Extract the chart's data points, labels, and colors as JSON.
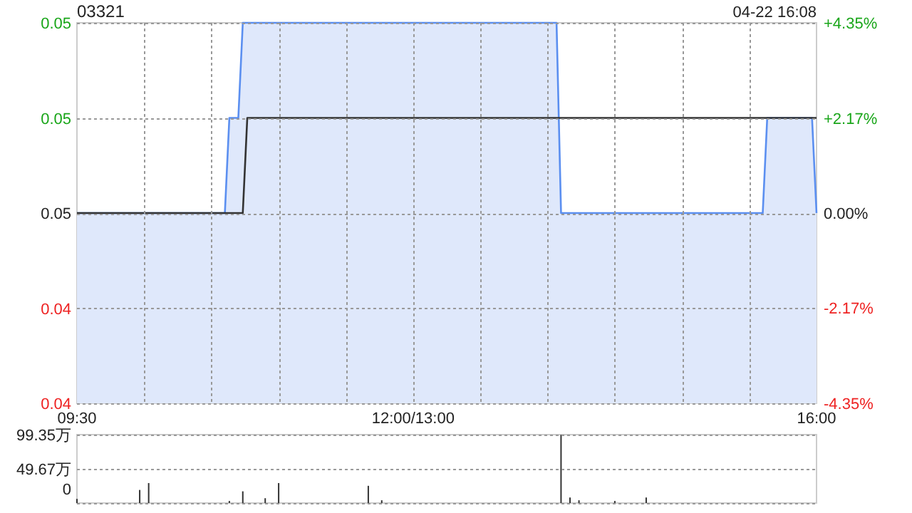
{
  "chart_data": [
    {
      "type": "area",
      "title": "03321",
      "subtitle": "04-22 16:08",
      "grid": true,
      "categories": [
        "09:30",
        null,
        null,
        null,
        null,
        null,
        null,
        null,
        null,
        null,
        null,
        null,
        null,
        null,
        null,
        null,
        null,
        null,
        null,
        null,
        null,
        null,
        null,
        null,
        null,
        null,
        null,
        null,
        null,
        null,
        null,
        null,
        null,
        null,
        null,
        null,
        null,
        null,
        null,
        null,
        null,
        null,
        null,
        null,
        null,
        null,
        null,
        null,
        null,
        null,
        null,
        null,
        null,
        null,
        null,
        null,
        null,
        null,
        null,
        null,
        null,
        null,
        null,
        null,
        null,
        null,
        null,
        null,
        null,
        null,
        null,
        null,
        null,
        null,
        null,
        "12:00/13:00",
        null,
        null,
        null,
        null,
        null,
        null,
        null,
        null,
        null,
        null,
        null,
        null,
        null,
        null,
        null,
        null,
        null,
        null,
        null,
        null,
        null,
        null,
        null,
        null,
        null,
        null,
        null,
        null,
        null,
        null,
        null,
        null,
        null,
        null,
        null,
        null,
        null,
        null,
        null,
        null,
        null,
        null,
        null,
        null,
        null,
        null,
        null,
        null,
        null,
        null,
        null,
        null,
        null,
        null,
        null,
        null,
        null,
        null,
        null,
        null,
        null,
        null,
        null,
        null,
        null,
        null,
        null,
        null,
        null,
        null,
        null,
        null,
        null,
        null,
        null,
        null,
        null,
        null,
        null,
        null,
        null,
        null,
        null,
        null,
        null,
        null,
        null,
        null,
        null,
        "16:00"
      ],
      "ylim": [
        0.044,
        0.048
      ],
      "yticks": [
        {
          "value": 0.048,
          "label": "0.05"
        },
        {
          "value": 0.047,
          "label": "0.05"
        },
        {
          "value": 0.046,
          "label": "0.05"
        },
        {
          "value": 0.045,
          "label": "0.04"
        },
        {
          "value": 0.044,
          "label": "0.04"
        }
      ],
      "y2lim": [
        -4.35,
        4.35
      ],
      "y2ticks": [
        {
          "value": 4.35,
          "label": "+4.35%"
        },
        {
          "value": 2.17,
          "label": "+2.17%"
        },
        {
          "value": 0,
          "label": "0.00%"
        },
        {
          "value": -2.17,
          "label": "-2.17%"
        },
        {
          "value": -4.35,
          "label": "-4.35%"
        }
      ],
      "series": [
        {
          "type": "area",
          "color": "#5b8ff0",
          "values": [
            0.046,
            0.046,
            0.046,
            0.046,
            0.046,
            0.046,
            0.046,
            0.046,
            0.046,
            0.046,
            0.046,
            0.046,
            0.046,
            0.046,
            0.046,
            0.046,
            0.046,
            0.046,
            0.046,
            0.046,
            0.046,
            0.046,
            0.046,
            0.046,
            0.046,
            0.046,
            0.046,
            0.046,
            0.046,
            0.046,
            0.046,
            0.046,
            0.046,
            0.046,
            0.047,
            0.047,
            0.047,
            0.048,
            0.048,
            0.048,
            0.048,
            0.048,
            0.048,
            0.048,
            0.048,
            0.048,
            0.048,
            0.048,
            0.048,
            0.048,
            0.048,
            0.048,
            0.048,
            0.048,
            0.048,
            0.048,
            0.048,
            0.048,
            0.048,
            0.048,
            0.048,
            0.048,
            0.048,
            0.048,
            0.048,
            0.048,
            0.048,
            0.048,
            0.048,
            0.048,
            0.048,
            0.048,
            0.048,
            0.048,
            0.048,
            0.048,
            0.048,
            0.048,
            0.048,
            0.048,
            0.048,
            0.048,
            0.048,
            0.048,
            0.048,
            0.048,
            0.048,
            0.048,
            0.048,
            0.048,
            0.048,
            0.048,
            0.048,
            0.048,
            0.048,
            0.048,
            0.048,
            0.048,
            0.048,
            0.048,
            0.048,
            0.048,
            0.048,
            0.048,
            0.048,
            0.048,
            0.048,
            0.048,
            0.046,
            0.046,
            0.046,
            0.046,
            0.046,
            0.046,
            0.046,
            0.046,
            0.046,
            0.046,
            0.046,
            0.046,
            0.046,
            0.046,
            0.046,
            0.046,
            0.046,
            0.046,
            0.046,
            0.046,
            0.046,
            0.046,
            0.046,
            0.046,
            0.046,
            0.046,
            0.046,
            0.046,
            0.046,
            0.046,
            0.046,
            0.046,
            0.046,
            0.046,
            0.046,
            0.046,
            0.046,
            0.046,
            0.046,
            0.046,
            0.046,
            0.046,
            0.046,
            0.046,
            0.046,
            0.046,
            0.047,
            0.047,
            0.047,
            0.047,
            0.047,
            0.047,
            0.047,
            0.047,
            0.047,
            0.047,
            0.047,
            0.046
          ]
        },
        {
          "type": "line",
          "color": "#333333",
          "values": [
            0.046,
            0.046,
            0.046,
            0.046,
            0.046,
            0.046,
            0.046,
            0.046,
            0.046,
            0.046,
            0.046,
            0.046,
            0.046,
            0.046,
            0.046,
            0.046,
            0.046,
            0.046,
            0.046,
            0.046,
            0.046,
            0.046,
            0.046,
            0.046,
            0.046,
            0.046,
            0.046,
            0.046,
            0.046,
            0.046,
            0.046,
            0.046,
            0.046,
            0.046,
            0.046,
            0.046,
            0.046,
            0.046,
            0.047,
            0.047,
            0.047,
            0.047,
            0.047,
            0.047,
            0.047,
            0.047,
            0.047,
            0.047,
            0.047,
            0.047,
            0.047,
            0.047,
            0.047,
            0.047,
            0.047,
            0.047,
            0.047,
            0.047,
            0.047,
            0.047,
            0.047,
            0.047,
            0.047,
            0.047,
            0.047,
            0.047,
            0.047,
            0.047,
            0.047,
            0.047,
            0.047,
            0.047,
            0.047,
            0.047,
            0.047,
            0.047,
            0.047,
            0.047,
            0.047,
            0.047,
            0.047,
            0.047,
            0.047,
            0.047,
            0.047,
            0.047,
            0.047,
            0.047,
            0.047,
            0.047,
            0.047,
            0.047,
            0.047,
            0.047,
            0.047,
            0.047,
            0.047,
            0.047,
            0.047,
            0.047,
            0.047,
            0.047,
            0.047,
            0.047,
            0.047,
            0.047,
            0.047,
            0.047,
            0.047,
            0.047,
            0.047,
            0.047,
            0.047,
            0.047,
            0.047,
            0.047,
            0.047,
            0.047,
            0.047,
            0.047,
            0.047,
            0.047,
            0.047,
            0.047,
            0.047,
            0.047,
            0.047,
            0.047,
            0.047,
            0.047,
            0.047,
            0.047,
            0.047,
            0.047,
            0.047,
            0.047,
            0.047,
            0.047,
            0.047,
            0.047,
            0.047,
            0.047,
            0.047,
            0.047,
            0.047,
            0.047,
            0.047,
            0.047,
            0.047,
            0.047,
            0.047,
            0.047,
            0.047,
            0.047,
            0.047,
            0.047,
            0.047,
            0.047,
            0.047,
            0.047,
            0.047,
            0.047,
            0.047,
            0.047,
            0.047,
            0.047
          ]
        }
      ]
    },
    {
      "type": "bar",
      "grid": "y",
      "tick_labels": "y",
      "ylim": [
        0,
        99.35
      ],
      "categories": [
        null,
        null,
        null,
        null,
        null,
        null,
        null,
        null,
        null,
        null,
        null,
        null,
        null,
        null,
        null,
        null,
        null,
        null,
        null,
        null,
        null,
        null,
        null,
        null,
        null,
        null,
        null,
        null,
        null,
        null,
        null,
        null,
        null,
        null,
        null,
        null,
        null,
        null,
        null,
        null,
        null,
        null,
        null,
        null,
        null,
        null,
        null,
        null,
        null,
        null,
        null,
        null,
        null,
        null,
        null,
        null,
        null,
        null,
        null,
        null,
        null,
        null,
        null,
        null,
        null,
        null,
        null,
        null,
        null,
        null,
        null,
        null,
        null,
        null,
        null,
        null,
        null,
        null,
        null,
        null,
        null,
        null,
        null,
        null,
        null,
        null,
        null,
        null,
        null,
        null,
        null,
        null,
        null,
        null,
        null,
        null,
        null,
        null,
        null,
        null,
        null,
        null,
        null,
        null,
        null,
        null,
        null,
        null,
        null,
        null,
        null,
        null,
        null,
        null,
        null,
        null,
        null,
        null,
        null,
        null,
        null,
        null,
        null,
        null,
        null,
        null,
        null,
        null,
        null,
        null,
        null,
        null,
        null,
        null,
        null,
        null,
        null,
        null,
        null,
        null,
        null,
        null,
        null,
        null,
        null,
        null,
        null,
        null,
        null,
        null,
        null,
        null,
        null,
        null,
        null,
        null,
        null,
        null,
        null,
        null,
        null,
        null,
        null,
        null,
        null,
        null
      ],
      "yticks": [
        {
          "value": 99.35,
          "label": "99.35万"
        },
        {
          "value": 49.67,
          "label": "49.67万"
        },
        {
          "value": 0,
          "label": "0"
        }
      ],
      "series": [
        {
          "color": "#333333",
          "values": [
            6,
            null,
            null,
            null,
            null,
            null,
            null,
            null,
            null,
            null,
            null,
            null,
            null,
            null,
            19,
            null,
            29,
            null,
            null,
            null,
            null,
            null,
            null,
            null,
            null,
            null,
            null,
            null,
            null,
            null,
            null,
            null,
            null,
            null,
            3,
            null,
            null,
            17,
            null,
            null,
            null,
            null,
            7,
            null,
            null,
            29,
            null,
            null,
            null,
            null,
            null,
            null,
            null,
            null,
            null,
            null,
            null,
            null,
            null,
            null,
            null,
            null,
            null,
            null,
            null,
            25,
            null,
            null,
            4,
            null,
            null,
            null,
            null,
            null,
            null,
            null,
            null,
            null,
            null,
            null,
            null,
            null,
            null,
            null,
            null,
            null,
            null,
            null,
            null,
            null,
            null,
            null,
            null,
            null,
            null,
            null,
            null,
            null,
            null,
            null,
            null,
            null,
            null,
            null,
            null,
            null,
            null,
            null,
            99,
            null,
            8,
            null,
            4,
            null,
            null,
            null,
            null,
            null,
            null,
            null,
            3,
            null,
            null,
            null,
            null,
            null,
            null,
            8,
            null,
            null,
            null,
            null,
            null,
            null,
            null,
            null,
            null,
            null,
            null,
            null,
            null,
            null,
            null,
            null,
            null,
            null,
            null,
            null,
            null,
            null,
            null,
            null,
            null,
            null,
            null,
            null,
            null,
            null,
            null,
            null,
            null,
            null,
            null,
            null,
            null,
            null
          ]
        }
      ]
    }
  ]
}
